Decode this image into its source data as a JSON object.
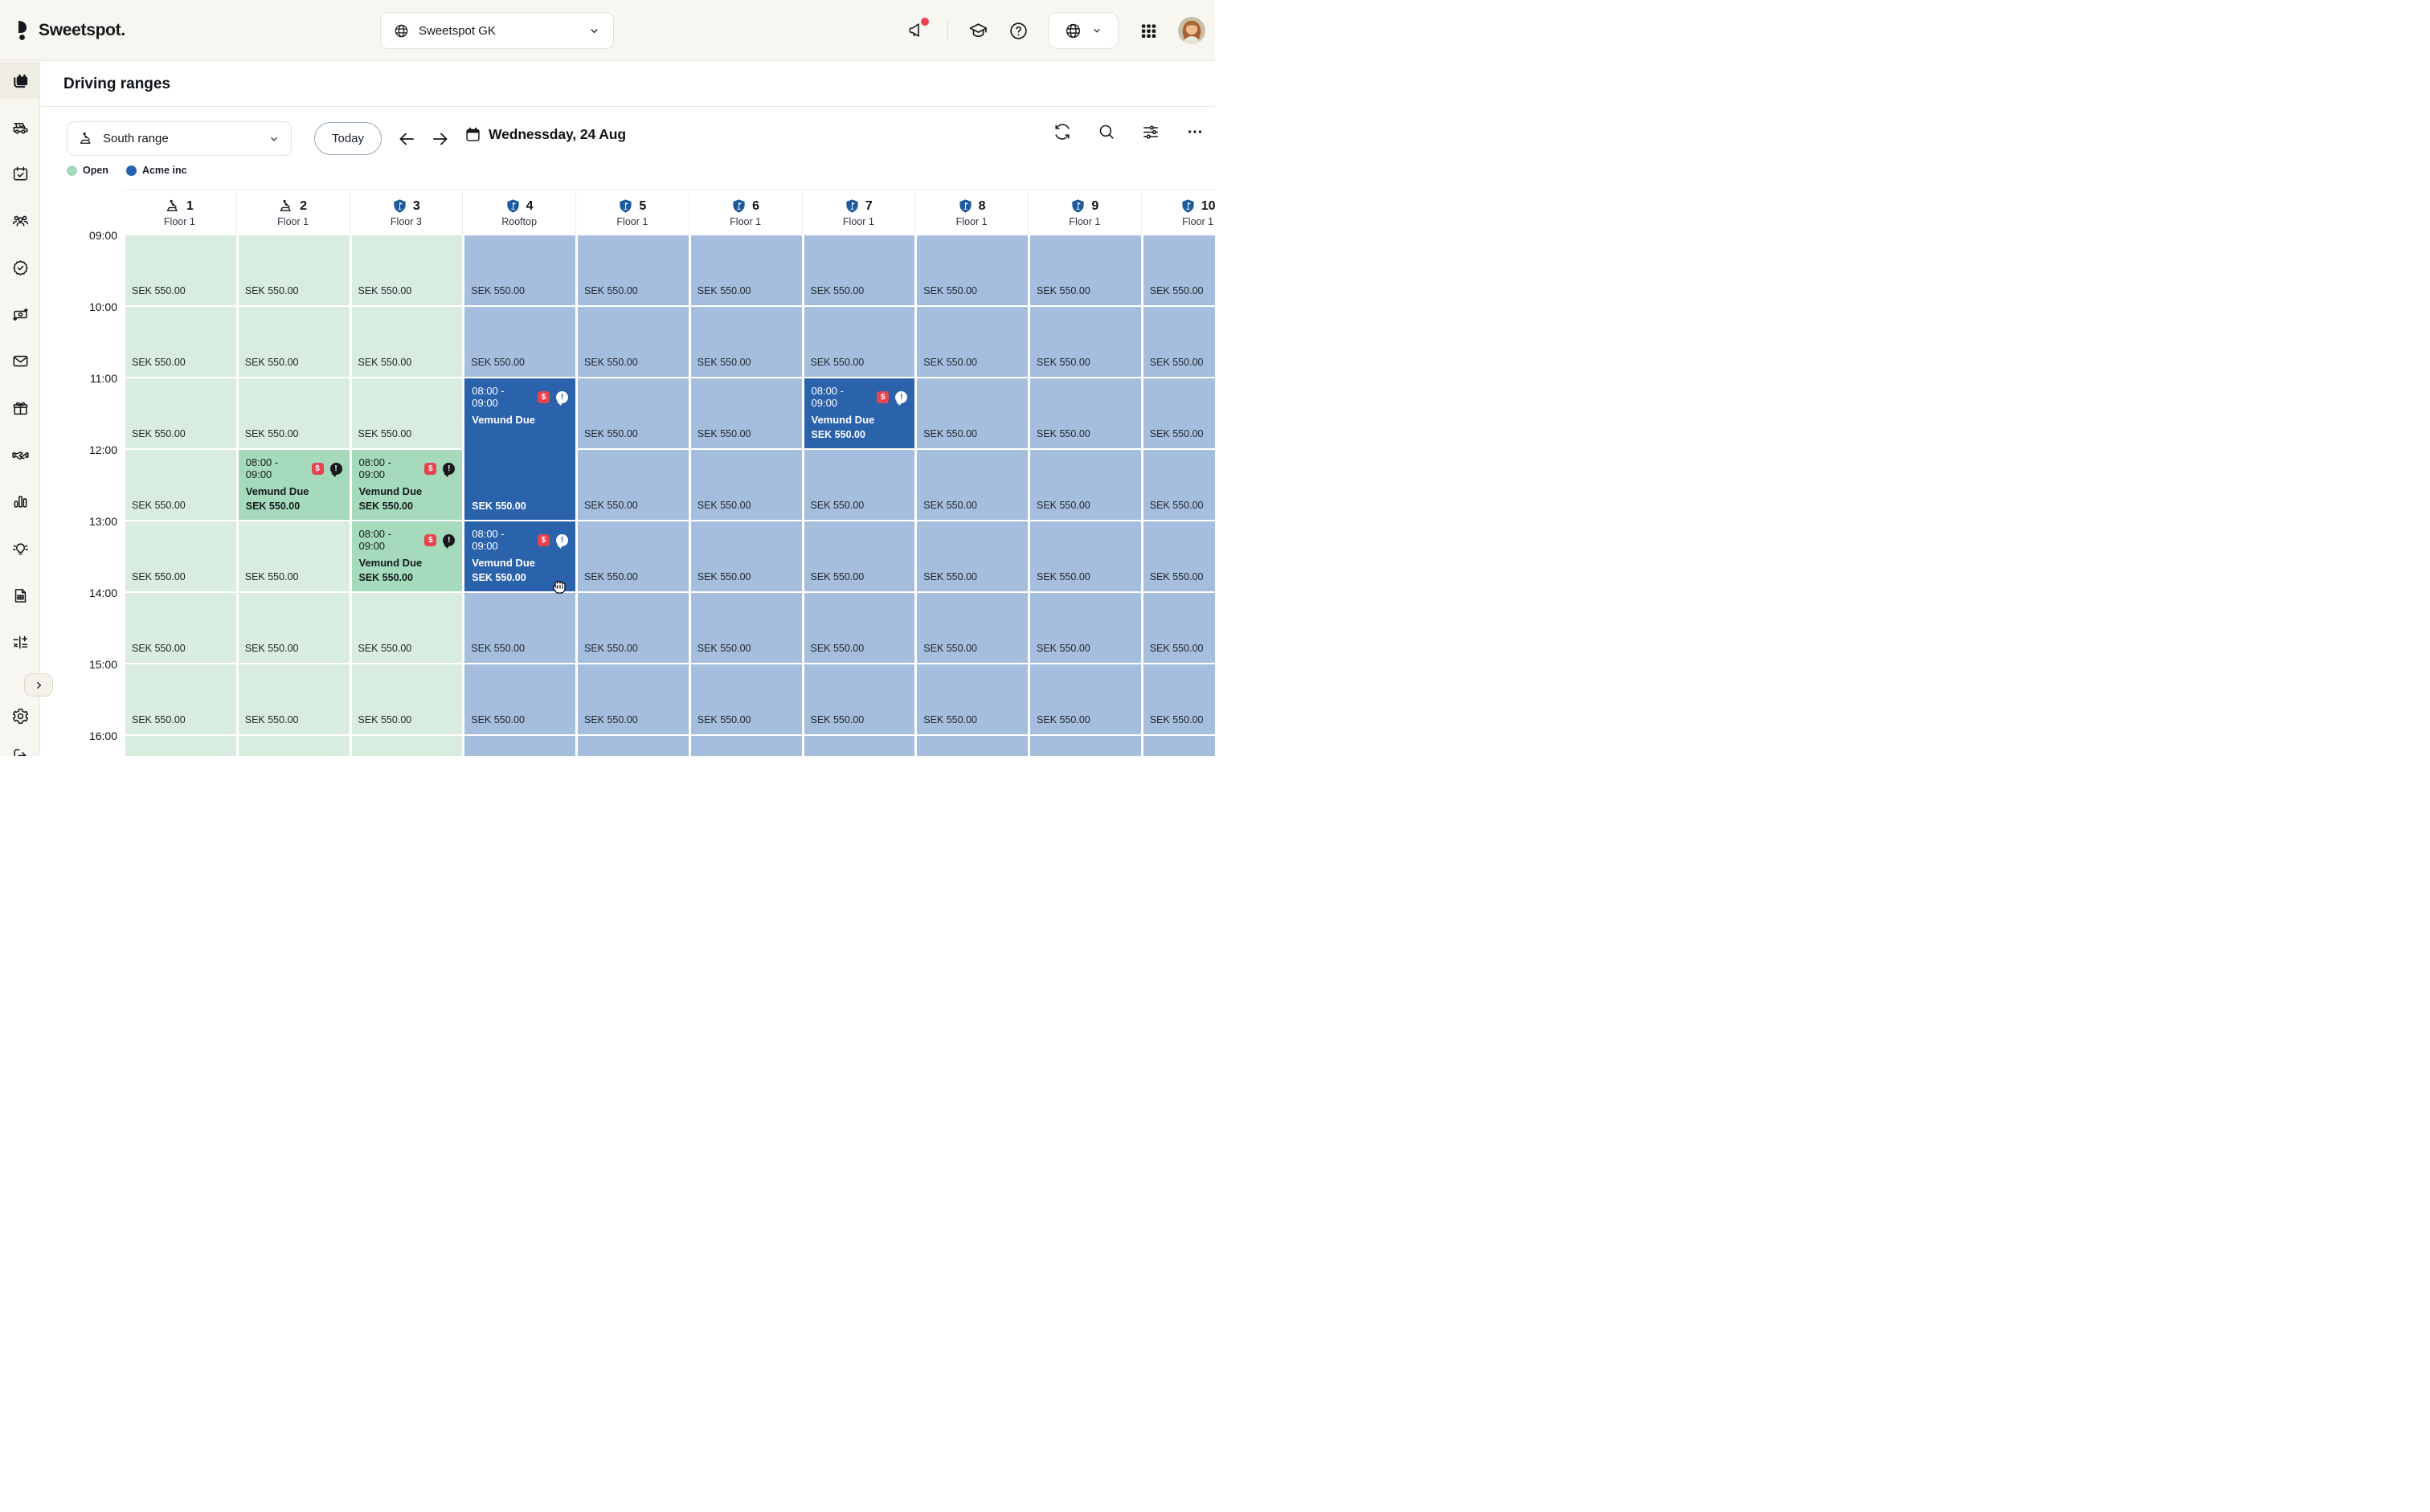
{
  "topbar": {
    "logo_text": "Sweetspot.",
    "club_selector_value": "Sweetspot GK"
  },
  "sidebar": {
    "items": [
      {
        "name": "bookings",
        "active": true
      },
      {
        "name": "golf-cart",
        "active": false
      },
      {
        "name": "calendar-check",
        "active": false
      },
      {
        "name": "members",
        "active": false
      },
      {
        "name": "badge-check",
        "active": false
      },
      {
        "name": "payments",
        "active": false
      },
      {
        "name": "mail",
        "active": false
      },
      {
        "name": "gift",
        "active": false
      },
      {
        "name": "partners",
        "active": false
      },
      {
        "name": "statistics",
        "active": false
      },
      {
        "name": "insights",
        "active": false
      },
      {
        "name": "documents",
        "active": false
      },
      {
        "name": "accounting",
        "active": false
      }
    ]
  },
  "page": {
    "title": "Driving ranges"
  },
  "toolbar": {
    "range_selector_value": "South range",
    "today_label": "Today",
    "date_label": "Wednessday, 24 Aug"
  },
  "legend": [
    {
      "label": "Open",
      "color": "#a5dabc"
    },
    {
      "label": "Acme inc",
      "color": "#2563b1"
    }
  ],
  "event_badges": {
    "dollar": "$",
    "alert": "!"
  },
  "grid": {
    "time_labels": [
      "09:00",
      "10:00",
      "11:00",
      "12:00",
      "13:00",
      "14:00",
      "15:00",
      "16:00"
    ],
    "price_label": "SEK 550.00",
    "columns": [
      {
        "number": "1",
        "floor": "Floor 1",
        "icon": "bay",
        "status": "open"
      },
      {
        "number": "2",
        "floor": "Floor 1",
        "icon": "bay",
        "status": "open"
      },
      {
        "number": "3",
        "floor": "Floor 3",
        "icon": "shield",
        "status": "open"
      },
      {
        "number": "4",
        "floor": "Rooftop",
        "icon": "shield",
        "status": "acme"
      },
      {
        "number": "5",
        "floor": "Floor 1",
        "icon": "shield",
        "status": "acme"
      },
      {
        "number": "6",
        "floor": "Floor 1",
        "icon": "shield",
        "status": "acme"
      },
      {
        "number": "7",
        "floor": "Floor 1",
        "icon": "shield",
        "status": "acme"
      },
      {
        "number": "8",
        "floor": "Floor 1",
        "icon": "shield",
        "status": "acme"
      },
      {
        "number": "9",
        "floor": "Floor 1",
        "icon": "shield",
        "status": "acme"
      },
      {
        "number": "10",
        "floor": "Floor 1",
        "icon": "shield",
        "status": "acme"
      }
    ],
    "events": [
      {
        "column": 2,
        "row": 3,
        "span": 1,
        "time": "08:00 - 09:00",
        "name": "Vemund Due",
        "price": "SEK 550.00",
        "variant": "open"
      },
      {
        "column": 3,
        "row": 3,
        "span": 1,
        "time": "08:00 - 09:00",
        "name": "Vemund Due",
        "price": "SEK 550.00",
        "variant": "open"
      },
      {
        "column": 3,
        "row": 4,
        "span": 1,
        "time": "08:00 - 09:00",
        "name": "Vemund Due",
        "price": "SEK 550.00",
        "variant": "open"
      },
      {
        "column": 4,
        "row": 2,
        "span": 2,
        "time": "08:00 - 09:00",
        "name": "Vemund Due",
        "price": "SEK 550.00",
        "variant": "acme"
      },
      {
        "column": 4,
        "row": 4,
        "span": 1,
        "time": "08:00 - 09:00",
        "name": "Vemund Due",
        "price": "SEK 550.00",
        "variant": "acme"
      },
      {
        "column": 7,
        "row": 2,
        "span": 1,
        "time": "08:00 - 09:00",
        "name": "Vemund Due",
        "price": "SEK 550.00",
        "variant": "acme"
      }
    ]
  },
  "colors": {
    "open_cell": "#d8ecdf",
    "open_event": "#a5dabc",
    "acme_cell": "#a6bedd",
    "acme_event": "#2a62ac",
    "alert_red": "#e8434e",
    "topbar_bg": "#f8f6f1"
  }
}
